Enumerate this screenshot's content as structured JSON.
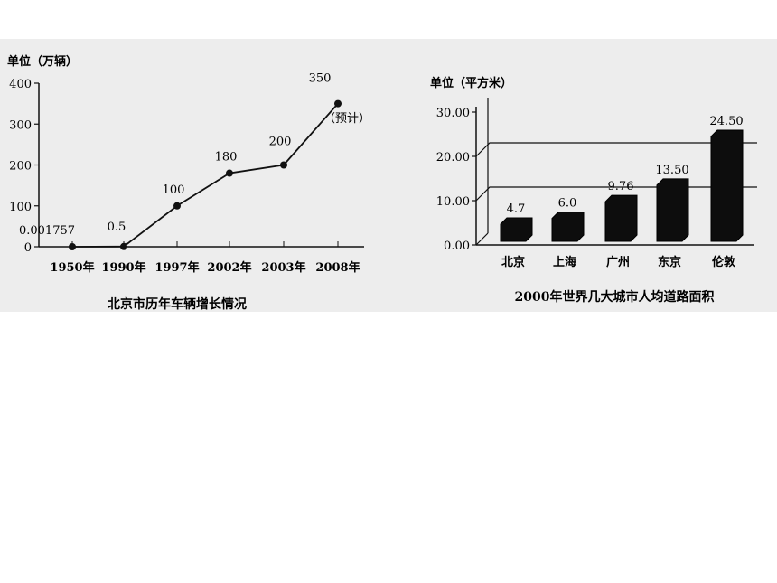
{
  "chart_data": [
    {
      "type": "line",
      "title": "北京市历年车辆增长情况",
      "ylabel": "单位（万辆）",
      "categories": [
        "1950年",
        "1990年",
        "1997年",
        "2002年",
        "2003年",
        "2008年"
      ],
      "values": [
        0.001757,
        0.5,
        100,
        180,
        200,
        350
      ],
      "data_labels": [
        "0.001757",
        "0.5",
        "100",
        "180",
        "200",
        "350"
      ],
      "annotation": "（预计）",
      "yticks": [
        "0",
        "100",
        "200",
        "300",
        "400"
      ],
      "ylim": [
        0,
        400
      ],
      "grid": false,
      "legend": "none"
    },
    {
      "type": "bar",
      "title": "2000年世界几大城市人均道路面积",
      "ylabel": "单位（平方米）",
      "categories": [
        "北京",
        "上海",
        "广州",
        "东京",
        "伦敦"
      ],
      "values": [
        4.7,
        6.0,
        9.76,
        13.5,
        24.5
      ],
      "data_labels": [
        "4.7",
        "6.0",
        "9.76",
        "13.50",
        "24.50"
      ],
      "yticks": [
        "0.00",
        "10.00",
        "20.00",
        "30.00"
      ],
      "ylim": [
        0,
        30
      ],
      "style": "3d",
      "grid": false,
      "legend": "none"
    }
  ],
  "colors": {
    "panel": "#ededed",
    "ink": "#111111",
    "bar": "#0d0d0d"
  }
}
